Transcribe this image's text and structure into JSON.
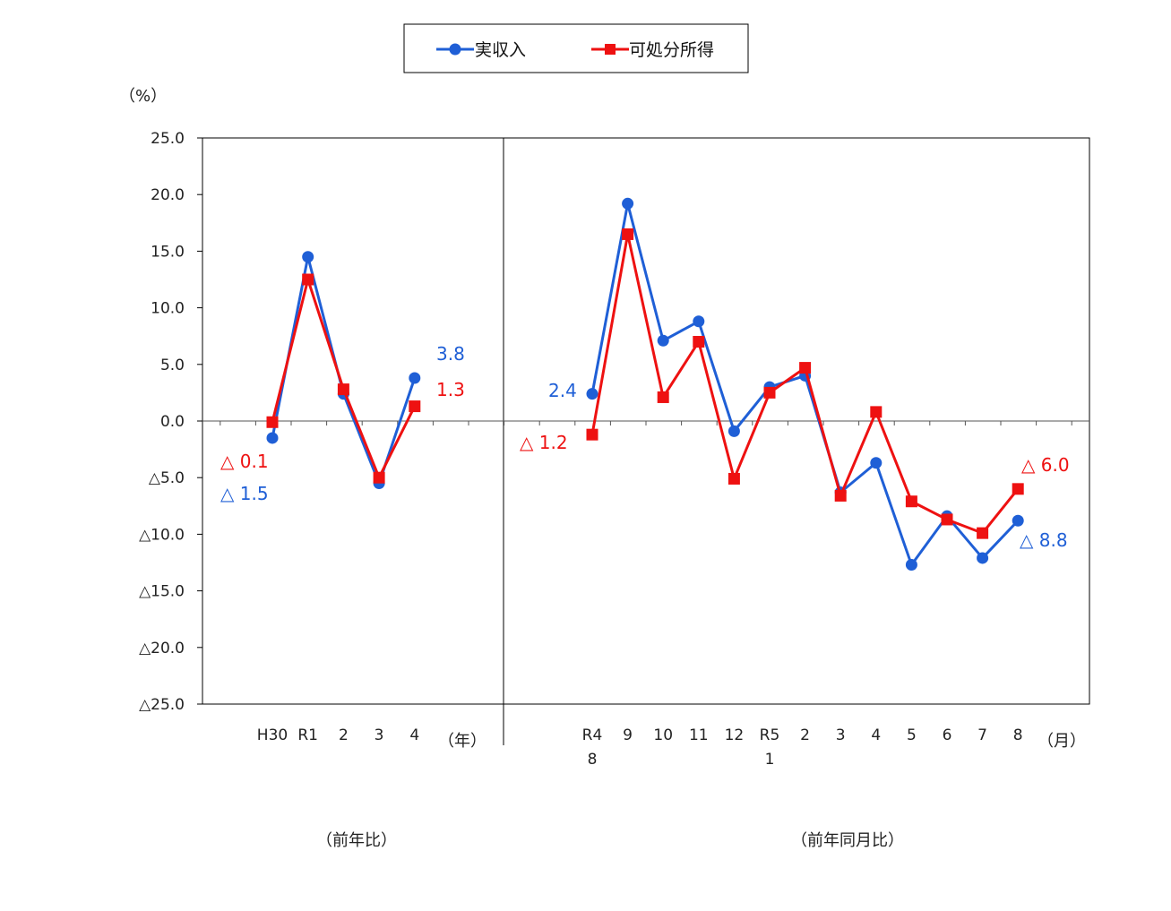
{
  "chart_data": {
    "type": "line",
    "legend": {
      "position": "top-center",
      "entries": [
        "実収入",
        "可処分所得"
      ]
    },
    "colors": {
      "実収入": "#1f5fd6",
      "可処分所得": "#ee1111"
    },
    "y_unit": "（%）",
    "ylim": [
      -25,
      25
    ],
    "y_ticks": [
      "25.0",
      "20.0",
      "15.0",
      "10.0",
      "5.0",
      "0.0",
      "△5.0",
      "△10.0",
      "△15.0",
      "△20.0",
      "△25.0"
    ],
    "panels": [
      {
        "categories": [
          "H30",
          "R1",
          "2",
          "3",
          "4"
        ],
        "x_unit": "（年）",
        "caption": "（前年比）",
        "series": [
          {
            "name": "実収入",
            "values": [
              -1.5,
              14.5,
              2.4,
              -5.5,
              3.8
            ]
          },
          {
            "name": "可処分所得",
            "values": [
              -0.1,
              12.5,
              2.8,
              -5.0,
              1.3
            ]
          }
        ],
        "annotations": [
          {
            "series": "実収入",
            "index": 0,
            "text": "△ 1.5"
          },
          {
            "series": "可処分所得",
            "index": 0,
            "text": "△ 0.1"
          },
          {
            "series": "実収入",
            "index": 4,
            "text": "3.8"
          },
          {
            "series": "可処分所得",
            "index": 4,
            "text": "1.3"
          }
        ]
      },
      {
        "categories": [
          "R4\n8",
          "9",
          "10",
          "11",
          "12",
          "R5\n1",
          "2",
          "3",
          "4",
          "5",
          "6",
          "7",
          "8"
        ],
        "x_unit": "（月）",
        "caption": "（前年同月比）",
        "series": [
          {
            "name": "実収入",
            "values": [
              2.4,
              19.2,
              7.1,
              8.8,
              -0.9,
              3.0,
              4.0,
              -6.3,
              -3.7,
              -12.7,
              -8.4,
              -12.1,
              -8.8
            ]
          },
          {
            "name": "可処分所得",
            "values": [
              -1.2,
              16.5,
              2.1,
              7.0,
              -5.1,
              2.5,
              4.7,
              -6.6,
              0.8,
              -7.1,
              -8.7,
              -9.9,
              -6.0
            ]
          }
        ],
        "annotations": [
          {
            "series": "実収入",
            "index": 0,
            "text": "2.4"
          },
          {
            "series": "可処分所得",
            "index": 0,
            "text": "△ 1.2"
          },
          {
            "series": "可処分所得",
            "index": 12,
            "text": "△ 6.0"
          },
          {
            "series": "実収入",
            "index": 12,
            "text": "△ 8.8"
          }
        ]
      }
    ]
  }
}
